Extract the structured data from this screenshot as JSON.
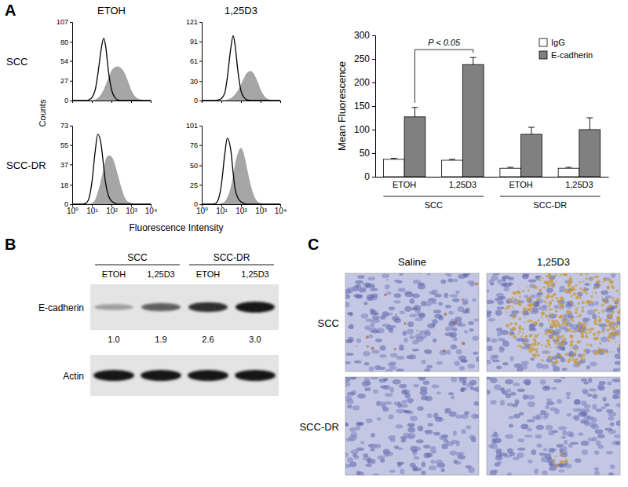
{
  "figure": {
    "panel_labels": [
      "A",
      "B",
      "C"
    ]
  },
  "flow": {
    "column_titles": [
      "ETOH",
      "1,25D3"
    ],
    "row_labels": [
      "SCC",
      "SCC-DR"
    ],
    "y_label": "Counts",
    "x_label": "Fluorescence Intensity"
  },
  "chart_data": [
    {
      "type": "line",
      "log": "x",
      "tick_labels": "y",
      "x": [
        1,
        2,
        3,
        5,
        7,
        10,
        15,
        20,
        30,
        40,
        50,
        70,
        100,
        150,
        200,
        300,
        400,
        500,
        700,
        1000,
        1500,
        2000,
        3000,
        5000,
        10000
      ],
      "xlim": [
        1,
        10000
      ],
      "xticks": [
        {
          "value": 1,
          "label": "10⁰"
        },
        {
          "value": 10,
          "label": "10¹"
        },
        {
          "value": 100,
          "label": "10²"
        },
        {
          "value": 1000,
          "label": "10³"
        },
        {
          "value": 10000,
          "label": "10⁴"
        }
      ],
      "ylim": [
        0,
        107
      ],
      "yticks": [
        0,
        27,
        54,
        80,
        107
      ],
      "series": [
        {
          "type": "area",
          "color": "#a6a6a6",
          "values": [
            0,
            0,
            0,
            0,
            0,
            0,
            1,
            3,
            8,
            14,
            20,
            30,
            40,
            45,
            46,
            44,
            40,
            35,
            25,
            14,
            6,
            3,
            1,
            0,
            0
          ]
        },
        {
          "type": "line",
          "color": "#000000",
          "values": [
            0,
            0,
            0,
            0,
            1,
            4,
            15,
            35,
            70,
            85,
            75,
            40,
            15,
            4,
            1,
            0,
            0,
            0,
            0,
            0,
            0,
            0,
            0,
            0,
            0
          ]
        }
      ]
    },
    {
      "type": "line",
      "log": "x",
      "tick_labels": "y",
      "x": [
        1,
        2,
        3,
        5,
        7,
        10,
        15,
        20,
        30,
        40,
        50,
        70,
        100,
        150,
        200,
        300,
        400,
        500,
        700,
        1000,
        1500,
        2000,
        3000,
        5000,
        10000
      ],
      "xlim": [
        1,
        10000
      ],
      "xticks": [
        {
          "value": 1,
          "label": "10⁰"
        },
        {
          "value": 10,
          "label": "10¹"
        },
        {
          "value": 100,
          "label": "10²"
        },
        {
          "value": 1000,
          "label": "10³"
        },
        {
          "value": 10000,
          "label": "10⁴"
        }
      ],
      "ylim": [
        0,
        121
      ],
      "yticks": [
        0,
        30,
        61,
        91,
        121
      ],
      "series": [
        {
          "type": "area",
          "color": "#a6a6a6",
          "values": [
            0,
            0,
            0,
            0,
            0,
            0,
            0,
            1,
            3,
            6,
            9,
            15,
            24,
            35,
            42,
            45,
            43,
            38,
            28,
            16,
            7,
            3,
            1,
            0,
            0
          ]
        },
        {
          "type": "line",
          "color": "#000000",
          "values": [
            0,
            0,
            0,
            0,
            1,
            3,
            12,
            35,
            80,
            100,
            85,
            45,
            15,
            4,
            1,
            0,
            0,
            0,
            0,
            0,
            0,
            0,
            0,
            0,
            0
          ]
        }
      ]
    },
    {
      "type": "line",
      "log": "x",
      "x": [
        1,
        2,
        3,
        5,
        7,
        10,
        15,
        20,
        30,
        40,
        50,
        70,
        100,
        150,
        200,
        300,
        400,
        500,
        700,
        1000,
        1500,
        2000,
        3000,
        5000,
        10000
      ],
      "xlim": [
        1,
        10000
      ],
      "xticks": [
        {
          "value": 1,
          "label": "10⁰"
        },
        {
          "value": 10,
          "label": "10¹"
        },
        {
          "value": 100,
          "label": "10²"
        },
        {
          "value": 1000,
          "label": "10³"
        },
        {
          "value": 10000,
          "label": "10⁴"
        }
      ],
      "ylim": [
        0,
        73
      ],
      "yticks": [
        0,
        18,
        37,
        55,
        73
      ],
      "series": [
        {
          "type": "area",
          "color": "#a6a6a6",
          "values": [
            0,
            0,
            0,
            0,
            0,
            1,
            4,
            10,
            22,
            32,
            40,
            45,
            44,
            36,
            28,
            16,
            9,
            5,
            2,
            1,
            0,
            0,
            0,
            0,
            0
          ]
        },
        {
          "type": "line",
          "color": "#000000",
          "values": [
            0,
            0,
            0,
            1,
            5,
            20,
            50,
            65,
            55,
            35,
            20,
            8,
            3,
            1,
            0,
            0,
            0,
            0,
            0,
            0,
            0,
            0,
            0,
            0,
            0
          ]
        }
      ]
    },
    {
      "type": "line",
      "log": "x",
      "x": [
        1,
        2,
        3,
        5,
        7,
        10,
        15,
        20,
        30,
        40,
        50,
        70,
        100,
        150,
        200,
        300,
        400,
        500,
        700,
        1000,
        1500,
        2000,
        3000,
        5000,
        10000
      ],
      "xlim": [
        1,
        10000
      ],
      "xticks": [
        {
          "value": 1,
          "label": "10⁰"
        },
        {
          "value": 10,
          "label": "10¹"
        },
        {
          "value": 100,
          "label": "10²"
        },
        {
          "value": 1000,
          "label": "10³"
        },
        {
          "value": 10000,
          "label": "10⁴"
        }
      ],
      "ylim": [
        0,
        101
      ],
      "yticks": [
        0,
        25,
        50,
        76,
        101
      ],
      "series": [
        {
          "type": "area",
          "color": "#a6a6a6",
          "values": [
            0,
            0,
            0,
            0,
            0,
            1,
            3,
            8,
            20,
            35,
            50,
            65,
            72,
            60,
            45,
            25,
            14,
            8,
            3,
            1,
            0,
            0,
            0,
            0,
            0
          ]
        },
        {
          "type": "line",
          "color": "#000000",
          "values": [
            0,
            0,
            0,
            1,
            6,
            25,
            65,
            85,
            70,
            40,
            20,
            8,
            3,
            1,
            0,
            0,
            0,
            0,
            0,
            0,
            0,
            0,
            0,
            0,
            0
          ]
        }
      ]
    },
    {
      "type": "bar",
      "categories": [
        "ETOH",
        "1,25D3",
        "ETOH",
        "1,25D3"
      ],
      "group_labels": [
        "SCC",
        "SCC-DR"
      ],
      "y_label": "Mean Fluorescence",
      "ylim": [
        0,
        300
      ],
      "yticks": [
        0,
        50,
        100,
        150,
        200,
        250,
        300
      ],
      "legend": "top-right",
      "series": [
        {
          "name": "IgG",
          "color": "#ffffff",
          "values": [
            37,
            35,
            18,
            18
          ],
          "errors": [
            2,
            2,
            2,
            2
          ]
        },
        {
          "name": "E-cadherin",
          "color": "#808080",
          "values": [
            127,
            238,
            90,
            100
          ],
          "errors": [
            20,
            15,
            15,
            25
          ]
        }
      ],
      "annotations": [
        {
          "text": "P < 0.05"
        }
      ]
    }
  ],
  "blot": {
    "group_labels": [
      "SCC",
      "SCC-DR"
    ],
    "lanes": [
      "ETOH",
      "1,25D3",
      "ETOH",
      "1,25D3"
    ],
    "rows": [
      {
        "label": "E-cadherin",
        "values": [
          1.0,
          1.9,
          2.6,
          3.0
        ],
        "value_labels": [
          "1.0",
          "1.9",
          "2.6",
          "3.0"
        ]
      },
      {
        "label": "Actin"
      }
    ]
  },
  "ihc": {
    "column_titles": [
      "Saline",
      "1,25D3"
    ],
    "row_labels": [
      "SCC",
      "SCC-DR"
    ]
  }
}
